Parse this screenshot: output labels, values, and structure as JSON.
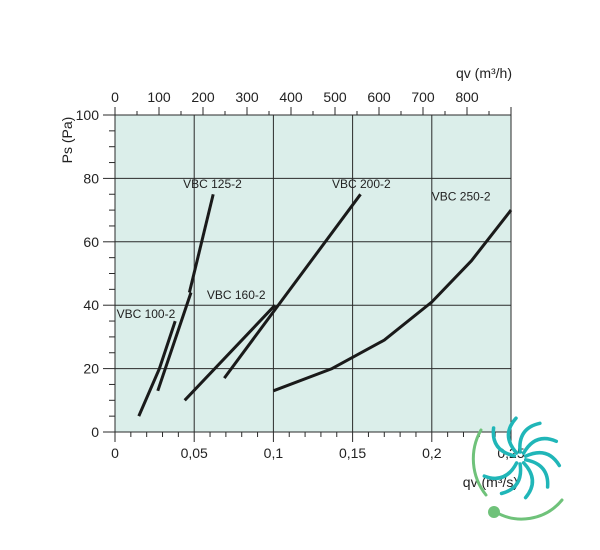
{
  "chart_data": {
    "type": "line",
    "ylabel": "Ps (Pa)",
    "xlabel_bottom": "qv (m³/s)",
    "xlabel_top": "qv (m³/h)",
    "ylim": [
      0,
      100
    ],
    "xlim_bottom": [
      0,
      0.25
    ],
    "xlim_top": [
      0,
      900
    ],
    "y_ticks": [
      "0",
      "20",
      "40",
      "60",
      "80",
      "100"
    ],
    "y_tick_values": [
      0,
      20,
      40,
      60,
      80,
      100
    ],
    "x_bottom_ticks": [
      "0",
      "0,05",
      "0,1",
      "0,15",
      "0,2",
      "0,25"
    ],
    "x_bottom_tick_values": [
      0,
      0.05,
      0.1,
      0.15,
      0.2,
      0.25
    ],
    "x_top_ticks": [
      "0",
      "100",
      "200",
      "300",
      "400",
      "500",
      "600",
      "700",
      "800"
    ],
    "x_top_tick_values": [
      0,
      100,
      200,
      300,
      400,
      500,
      600,
      700,
      800
    ],
    "grid": true,
    "background_color": "#dbeeea",
    "series": [
      {
        "name": "VBC 100-2",
        "segments": [
          [
            [
              0.015,
              5
            ],
            [
              0.028,
              20
            ],
            [
              0.038,
              35
            ]
          ],
          [
            [
              0.027,
              13
            ],
            [
              0.048,
              44
            ]
          ]
        ]
      },
      {
        "name": "VBC 125-2",
        "segments": [
          [
            [
              0.047,
              44
            ],
            [
              0.062,
              75
            ]
          ]
        ]
      },
      {
        "name": "VBC 160-2",
        "segments": [
          [
            [
              0.044,
              10
            ],
            [
              0.101,
              40
            ]
          ]
        ]
      },
      {
        "name": "VBC 200-2",
        "segments": [
          [
            [
              0.069,
              17
            ],
            [
              0.155,
              75
            ]
          ]
        ]
      },
      {
        "name": "VBC 250-2",
        "segments": [
          [
            [
              0.1,
              13
            ],
            [
              0.137,
              20
            ],
            [
              0.17,
              29
            ],
            [
              0.2,
              41
            ],
            [
              0.225,
              54
            ],
            [
              0.25,
              70
            ]
          ]
        ]
      }
    ],
    "labels": [
      {
        "text": "VBC 100-2",
        "x": 0.001,
        "y": 36,
        "series": "VBC 100-2"
      },
      {
        "text": "VBC 125-2",
        "x": 0.043,
        "y": 77,
        "series": "VBC 125-2"
      },
      {
        "text": "VBC 160-2",
        "x": 0.058,
        "y": 42,
        "series": "VBC 160-2"
      },
      {
        "text": "VBC 200-2",
        "x": 0.137,
        "y": 77,
        "series": "VBC 200-2"
      },
      {
        "text": "VBC 250-2",
        "x": 0.2,
        "y": 73,
        "series": "VBC 250-2"
      }
    ]
  },
  "colors": {
    "plot_background": "#dbeeea",
    "curve": "#1a1a1a",
    "grid": "#2a2a2a",
    "logo_teal": "#20b6b8",
    "logo_green": "#6fc27a"
  },
  "logo": {
    "icon": "fan-blades-logo-icon"
  }
}
